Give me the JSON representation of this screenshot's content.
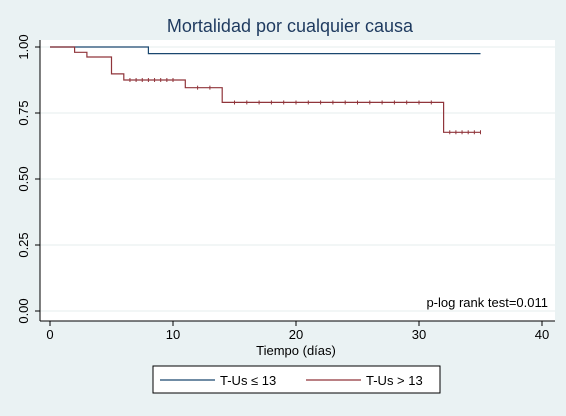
{
  "chart_data": {
    "type": "line",
    "step": true,
    "title": "Mortalidad por cualquier causa",
    "xlabel": "Tiempo (días)",
    "ylabel": "",
    "xlim": [
      0,
      40
    ],
    "ylim": [
      0,
      1
    ],
    "xticks": [
      0,
      10,
      20,
      30,
      40
    ],
    "yticks": [
      0.0,
      0.25,
      0.5,
      0.75,
      1.0
    ],
    "ytick_labels": [
      "0.00",
      "0.25",
      "0.50",
      "0.75",
      "1.00"
    ],
    "grid": true,
    "legend_position": "bottom",
    "annotation": "p-log rank test=0.011",
    "series": [
      {
        "name": "T-Us ≤ 13",
        "color": "#1a476f",
        "points": [
          [
            0,
            1.0
          ],
          [
            8,
            1.0
          ],
          [
            8,
            0.975
          ],
          [
            35,
            0.975
          ]
        ]
      },
      {
        "name": "T-Us > 13",
        "color": "#90353b",
        "points": [
          [
            0,
            1.0
          ],
          [
            2,
            1.0
          ],
          [
            2,
            0.98
          ],
          [
            3,
            0.98
          ],
          [
            3,
            0.962
          ],
          [
            5,
            0.962
          ],
          [
            5,
            0.898
          ],
          [
            6,
            0.898
          ],
          [
            6,
            0.875
          ],
          [
            11,
            0.875
          ],
          [
            11,
            0.846
          ],
          [
            14,
            0.846
          ],
          [
            14,
            0.79
          ],
          [
            32,
            0.79
          ],
          [
            32,
            0.677
          ],
          [
            35,
            0.677
          ]
        ],
        "censor_x": [
          6.5,
          7,
          7.5,
          8,
          8.5,
          9,
          9.5,
          10,
          12,
          13,
          15,
          16,
          17,
          18,
          19,
          20,
          21,
          22,
          23,
          24,
          25,
          26,
          27,
          28,
          29,
          30,
          31,
          32.5,
          33,
          33.5,
          34,
          34.5,
          35
        ]
      }
    ]
  }
}
